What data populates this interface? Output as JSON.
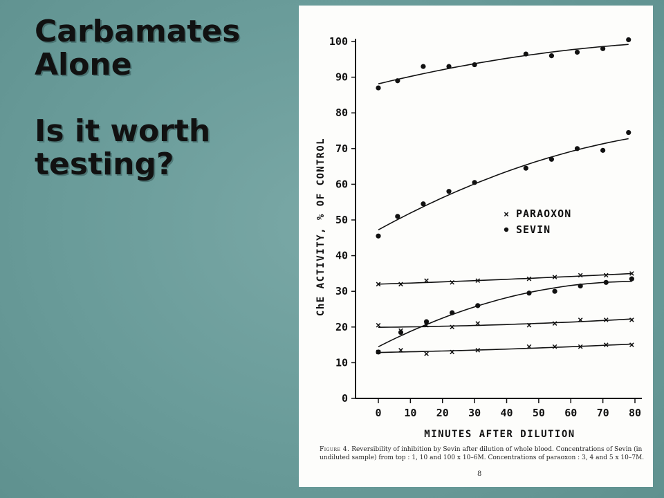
{
  "slide": {
    "title_lines": [
      "Carbamates",
      "Alone"
    ],
    "question_lines": [
      "Is it worth",
      "testing?"
    ]
  },
  "figure": {
    "caption_lead": "Figure 4.",
    "caption_text": "Reversibility of inhibition by Sevin after dilution of whole blood.  Concentrations of Sevin (in undiluted sample) from top : 1, 10 and 100 x 10–6M.  Concentrations of paraoxon : 3, 4 and 5 x 10–7M.",
    "page_number": "8"
  },
  "colors": {
    "background": "#6a9c9a",
    "ink": "#111111",
    "paper": "#fdfdfb"
  },
  "chart_data": {
    "type": "scatter",
    "title": "",
    "xlabel": "MINUTES AFTER DILUTION",
    "ylabel": "ChE ACTIVITY, % OF CONTROL",
    "xlim": [
      0,
      80
    ],
    "ylim": [
      0,
      100
    ],
    "x_ticks": [
      0,
      10,
      20,
      30,
      40,
      50,
      60,
      70,
      80
    ],
    "y_ticks": [
      0,
      10,
      20,
      30,
      40,
      50,
      60,
      70,
      80,
      90,
      100
    ],
    "grid": false,
    "legend_position": "middle-right",
    "legend": [
      {
        "marker": "x",
        "label": "PARAOXON"
      },
      {
        "marker": "dot",
        "label": "SEVIN"
      }
    ],
    "series": [
      {
        "group": "SEVIN",
        "marker": "dot",
        "x": [
          0,
          6,
          14,
          22,
          30,
          46,
          54,
          62,
          70,
          78
        ],
        "y": [
          87,
          89,
          93,
          93,
          93.5,
          96.5,
          96,
          97,
          98,
          100.5
        ]
      },
      {
        "group": "SEVIN",
        "marker": "dot",
        "x": [
          0,
          6,
          14,
          22,
          30,
          46,
          54,
          62,
          70,
          78
        ],
        "y": [
          45.5,
          51,
          54.5,
          58,
          60.5,
          64.5,
          67,
          70,
          69.5,
          74.5
        ]
      },
      {
        "group": "PARAOXON",
        "marker": "x",
        "x": [
          0,
          7,
          15,
          23,
          31,
          47,
          55,
          63,
          71,
          79
        ],
        "y": [
          32,
          32,
          33,
          32.5,
          33,
          33.5,
          34,
          34.5,
          34.5,
          35
        ]
      },
      {
        "group": "SEVIN",
        "marker": "dot",
        "x": [
          0,
          7,
          15,
          23,
          31,
          47,
          55,
          63,
          71,
          79
        ],
        "y": [
          13,
          18.5,
          21.5,
          24,
          26,
          29.5,
          30,
          31.5,
          32.5,
          33.5
        ]
      },
      {
        "group": "PARAOXON",
        "marker": "x",
        "x": [
          0,
          7,
          15,
          23,
          31,
          47,
          55,
          63,
          71,
          79
        ],
        "y": [
          20.5,
          19,
          20.5,
          20,
          21,
          20.5,
          21,
          22,
          22,
          22
        ]
      },
      {
        "group": "PARAOXON",
        "marker": "x",
        "x": [
          0,
          7,
          15,
          23,
          31,
          47,
          55,
          63,
          71,
          79
        ],
        "y": [
          13,
          13.5,
          12.5,
          13,
          13.5,
          14.5,
          14.5,
          14.5,
          15,
          15
        ]
      }
    ]
  }
}
